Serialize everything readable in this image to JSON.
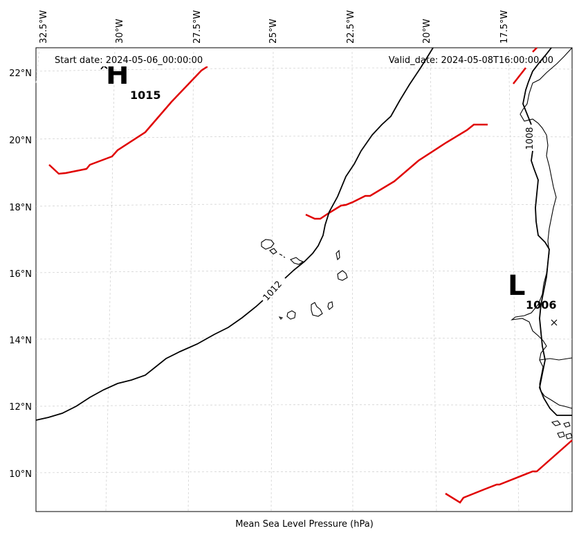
{
  "map": {
    "title_left": "Start date: 2024-05-06_00:00:00",
    "title_right": "Valid_date: 2024-05-08T16:00:00.00",
    "xlabel": "Mean Sea Level Pressure (hPa)",
    "lon_ticks": [
      "32.5°W",
      "30°W",
      "27.5°W",
      "25°W",
      "22.5°W",
      "20°W",
      "17.5°W"
    ],
    "lat_ticks": [
      "22°N",
      "20°N",
      "18°N",
      "16°N",
      "14°N",
      "12°N",
      "10°N"
    ],
    "centers": [
      {
        "symbol": "H",
        "value": "1015"
      },
      {
        "symbol": "L",
        "value": "1006"
      }
    ],
    "isobar_labels": [
      "1012",
      "1008"
    ],
    "colors": {
      "isobar": "#000000",
      "ridge": "#e00000",
      "grid": "#cccccc"
    }
  }
}
